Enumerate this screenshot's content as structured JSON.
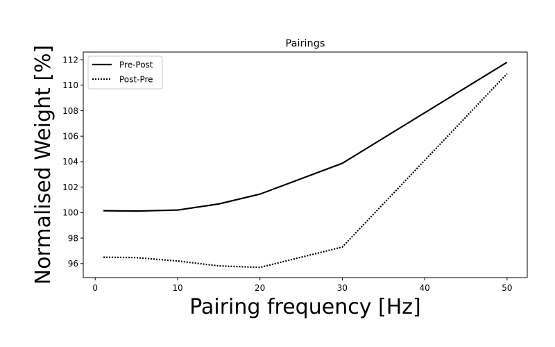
{
  "chart_data": {
    "type": "line",
    "title": "Pairings",
    "xlabel": "Pairing frequency [Hz]",
    "ylabel": "Normalised Weight [%]",
    "x": [
      1,
      5,
      10,
      15,
      20,
      30,
      50
    ],
    "series": [
      {
        "name": "Pre-Post",
        "values": [
          100.15,
          100.12,
          100.2,
          100.68,
          101.45,
          103.87,
          111.8
        ],
        "style": "solid",
        "color": "#000000"
      },
      {
        "name": "Post-Pre",
        "values": [
          96.5,
          96.47,
          96.2,
          95.82,
          95.7,
          97.3,
          110.9
        ],
        "style": "dotted",
        "color": "#000000"
      }
    ],
    "xlim": [
      -1.45,
      52.45
    ],
    "ylim": [
      94.9,
      112.6
    ],
    "xticks": [
      0,
      10,
      20,
      30,
      40,
      50
    ],
    "xtick_labels": [
      "0",
      "10",
      "20",
      "30",
      "40",
      "50"
    ],
    "yticks": [
      96,
      98,
      100,
      102,
      104,
      106,
      108,
      110,
      112
    ],
    "ytick_labels": [
      "96",
      "98",
      "100",
      "102",
      "104",
      "106",
      "108",
      "110",
      "112"
    ],
    "grid": false,
    "legend_position": "upper-left"
  }
}
